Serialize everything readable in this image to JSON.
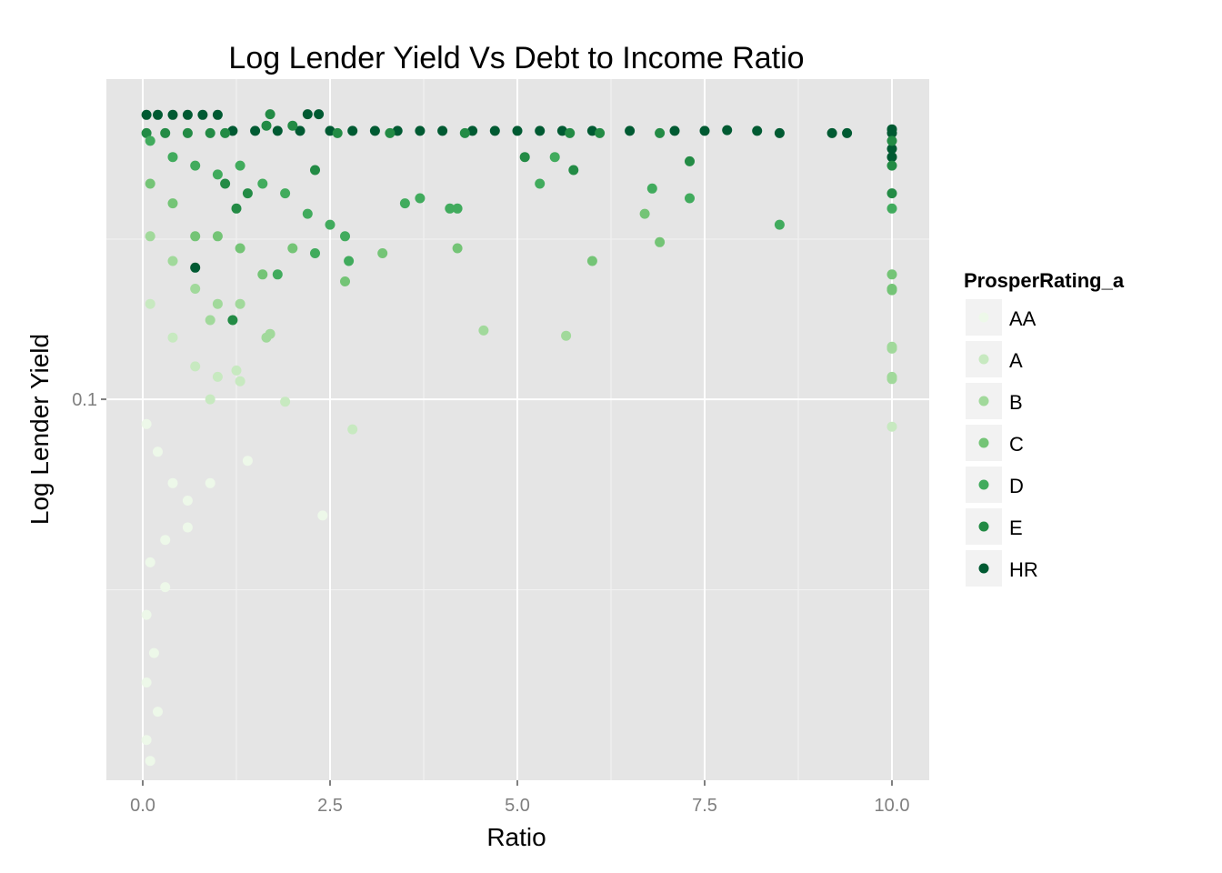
{
  "chart_data": {
    "type": "scatter",
    "title": "Log Lender Yield Vs Debt to Income Ratio",
    "xlabel": "Ratio",
    "ylabel": "Log Lender Yield",
    "x_scale": "linear",
    "y_scale": "log10",
    "xlim": [
      -0.2,
      10.35
    ],
    "ylim": [
      0.0198,
      0.39
    ],
    "x_ticks": [
      0,
      2.5,
      5,
      7.5,
      10
    ],
    "x_tick_labels": [
      "0.0",
      "2.5",
      "5.0",
      "7.5",
      "10.0"
    ],
    "y_ticks": [
      0.1
    ],
    "y_tick_labels": [
      "0.1"
    ],
    "grid": true,
    "background": "#e5e5e5",
    "legend": {
      "title": "ProsperRating_a",
      "placement": "right",
      "entries": [
        {
          "label": "AA",
          "color": "#edf8e9"
        },
        {
          "label": "A",
          "color": "#c7e9c0"
        },
        {
          "label": "B",
          "color": "#a1d99b"
        },
        {
          "label": "C",
          "color": "#74c476"
        },
        {
          "label": "D",
          "color": "#41ab5d"
        },
        {
          "label": "E",
          "color": "#238b45"
        },
        {
          "label": "HR",
          "color": "#005a32"
        }
      ]
    },
    "series": [
      {
        "name": "HR",
        "points": [
          [
            0.05,
            0.335
          ],
          [
            0.2,
            0.335
          ],
          [
            0.4,
            0.335
          ],
          [
            0.6,
            0.335
          ],
          [
            0.8,
            0.335
          ],
          [
            1.0,
            0.335
          ],
          [
            1.2,
            0.313
          ],
          [
            1.5,
            0.313
          ],
          [
            1.8,
            0.313
          ],
          [
            2.1,
            0.313
          ],
          [
            2.5,
            0.313
          ],
          [
            2.8,
            0.313
          ],
          [
            3.1,
            0.313
          ],
          [
            3.4,
            0.313
          ],
          [
            3.7,
            0.313
          ],
          [
            4.0,
            0.313
          ],
          [
            4.4,
            0.313
          ],
          [
            4.7,
            0.313
          ],
          [
            5.0,
            0.313
          ],
          [
            5.3,
            0.313
          ],
          [
            5.6,
            0.313
          ],
          [
            6.0,
            0.313
          ],
          [
            6.5,
            0.313
          ],
          [
            7.1,
            0.313
          ],
          [
            7.5,
            0.313
          ],
          [
            7.8,
            0.314
          ],
          [
            8.2,
            0.313
          ],
          [
            8.5,
            0.31
          ],
          [
            9.2,
            0.31
          ],
          [
            9.4,
            0.31
          ],
          [
            10.0,
            0.315
          ],
          [
            10.0,
            0.31
          ],
          [
            2.2,
            0.336
          ],
          [
            2.35,
            0.336
          ],
          [
            0.7,
            0.175
          ],
          [
            10.0,
            0.29
          ],
          [
            10.0,
            0.28
          ]
        ]
      },
      {
        "name": "E",
        "points": [
          [
            0.05,
            0.31
          ],
          [
            0.3,
            0.31
          ],
          [
            0.6,
            0.31
          ],
          [
            0.9,
            0.31
          ],
          [
            1.1,
            0.31
          ],
          [
            1.7,
            0.336
          ],
          [
            1.65,
            0.32
          ],
          [
            2.0,
            0.32
          ],
          [
            2.6,
            0.31
          ],
          [
            3.3,
            0.31
          ],
          [
            4.3,
            0.31
          ],
          [
            5.7,
            0.31
          ],
          [
            6.1,
            0.31
          ],
          [
            6.9,
            0.31
          ],
          [
            7.3,
            0.275
          ],
          [
            5.1,
            0.28
          ],
          [
            5.75,
            0.265
          ],
          [
            10.0,
            0.3
          ],
          [
            10.0,
            0.27
          ],
          [
            10.0,
            0.24
          ],
          [
            1.1,
            0.25
          ],
          [
            1.4,
            0.24
          ],
          [
            1.25,
            0.225
          ],
          [
            2.3,
            0.265
          ],
          [
            1.2,
            0.14
          ]
        ]
      },
      {
        "name": "D",
        "points": [
          [
            0.1,
            0.3
          ],
          [
            0.4,
            0.28
          ],
          [
            0.7,
            0.27
          ],
          [
            1.0,
            0.26
          ],
          [
            1.3,
            0.27
          ],
          [
            1.6,
            0.25
          ],
          [
            1.9,
            0.24
          ],
          [
            2.2,
            0.22
          ],
          [
            2.5,
            0.21
          ],
          [
            2.7,
            0.2
          ],
          [
            3.5,
            0.23
          ],
          [
            3.7,
            0.235
          ],
          [
            4.1,
            0.225
          ],
          [
            4.2,
            0.225
          ],
          [
            5.5,
            0.28
          ],
          [
            5.3,
            0.25
          ],
          [
            6.8,
            0.245
          ],
          [
            7.3,
            0.235
          ],
          [
            10.0,
            0.225
          ],
          [
            8.5,
            0.21
          ],
          [
            2.3,
            0.186
          ],
          [
            2.75,
            0.18
          ],
          [
            1.8,
            0.17
          ]
        ]
      },
      {
        "name": "C",
        "points": [
          [
            0.1,
            0.25
          ],
          [
            0.4,
            0.23
          ],
          [
            0.7,
            0.2
          ],
          [
            1.0,
            0.2
          ],
          [
            1.3,
            0.19
          ],
          [
            1.6,
            0.17
          ],
          [
            2.0,
            0.19
          ],
          [
            3.2,
            0.186
          ],
          [
            4.2,
            0.19
          ],
          [
            6.0,
            0.18
          ],
          [
            6.9,
            0.195
          ],
          [
            6.7,
            0.22
          ],
          [
            10.0,
            0.17
          ],
          [
            10.0,
            0.16
          ],
          [
            10.0,
            0.159
          ],
          [
            2.7,
            0.165
          ]
        ]
      },
      {
        "name": "B",
        "points": [
          [
            0.1,
            0.2
          ],
          [
            0.4,
            0.18
          ],
          [
            0.7,
            0.16
          ],
          [
            1.0,
            0.15
          ],
          [
            1.3,
            0.15
          ],
          [
            1.7,
            0.132
          ],
          [
            1.65,
            0.13
          ],
          [
            4.55,
            0.134
          ],
          [
            5.65,
            0.131
          ],
          [
            10.0,
            0.125
          ],
          [
            10.0,
            0.124
          ],
          [
            10.0,
            0.11
          ],
          [
            10.0,
            0.109
          ],
          [
            0.9,
            0.14
          ]
        ]
      },
      {
        "name": "A",
        "points": [
          [
            0.1,
            0.15
          ],
          [
            0.4,
            0.13
          ],
          [
            0.7,
            0.115
          ],
          [
            1.0,
            0.11
          ],
          [
            1.3,
            0.108
          ],
          [
            1.9,
            0.099
          ],
          [
            1.25,
            0.113
          ],
          [
            2.8,
            0.088
          ],
          [
            10.0,
            0.089
          ],
          [
            0.9,
            0.1
          ]
        ]
      },
      {
        "name": "AA",
        "points": [
          [
            0.05,
            0.09
          ],
          [
            0.2,
            0.08
          ],
          [
            0.4,
            0.07
          ],
          [
            0.6,
            0.065
          ],
          [
            0.9,
            0.07
          ],
          [
            1.4,
            0.077
          ],
          [
            2.4,
            0.061
          ],
          [
            0.1,
            0.05
          ],
          [
            0.3,
            0.055
          ],
          [
            0.05,
            0.04
          ],
          [
            0.15,
            0.034
          ],
          [
            0.05,
            0.03
          ],
          [
            0.3,
            0.045
          ],
          [
            0.2,
            0.0265
          ],
          [
            0.05,
            0.0235
          ],
          [
            0.1,
            0.0215
          ],
          [
            0.6,
            0.058
          ]
        ]
      }
    ]
  }
}
